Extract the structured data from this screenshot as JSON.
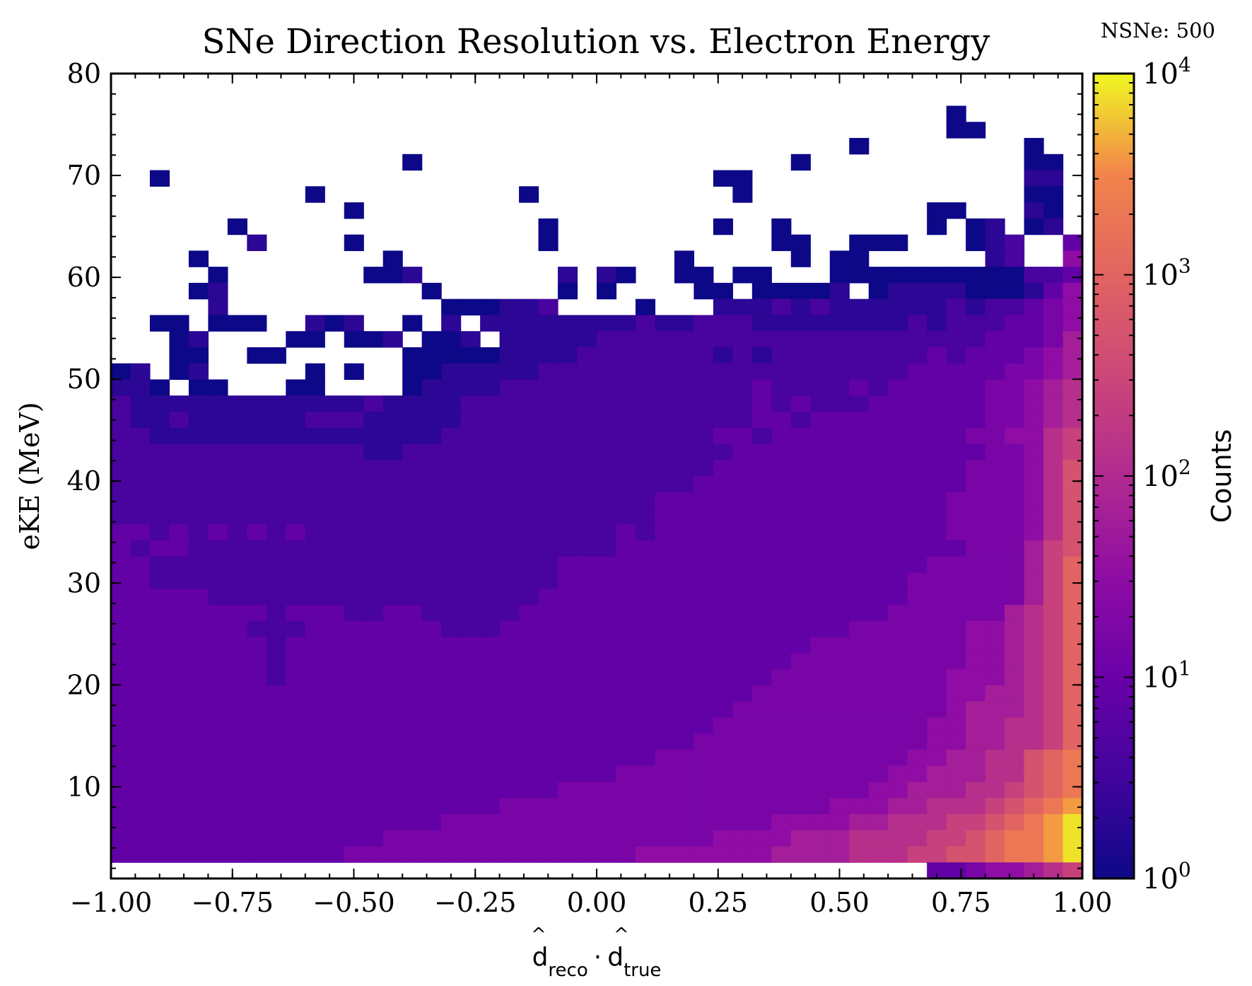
{
  "chart_data": {
    "type": "heatmap",
    "title": "SNe Direction Resolution vs. Electron Energy",
    "annotation": "NSNe: 500",
    "xlabel": {
      "base": "d",
      "sub": "reco",
      "dot": "·",
      "base2": "d",
      "sub2": "true"
    },
    "ylabel": "eKE (MeV)",
    "xlim": [
      -1.0,
      1.0
    ],
    "ylim": [
      1.0,
      80.0
    ],
    "x_ticks": [
      -1.0,
      -0.75,
      -0.5,
      -0.25,
      0.0,
      0.25,
      0.5,
      0.75,
      1.0
    ],
    "x_tick_labels": [
      "−1.00",
      "−0.75",
      "−0.50",
      "−0.25",
      "0.00",
      "0.25",
      "0.50",
      "0.75",
      "1.00"
    ],
    "y_ticks": [
      10,
      20,
      30,
      40,
      50,
      60,
      70,
      80
    ],
    "y_tick_labels": [
      "10",
      "20",
      "30",
      "40",
      "50",
      "60",
      "70",
      "80"
    ],
    "x_bins": 50,
    "y_bins": 50,
    "colormap": "plasma",
    "colorbar": {
      "label": "Counts",
      "scale": "log",
      "range": [
        1,
        10000
      ],
      "ticks": [
        1,
        10,
        100,
        1000,
        10000
      ],
      "tick_labels": [
        {
          "base": "10",
          "exp": "0"
        },
        {
          "base": "10",
          "exp": "1"
        },
        {
          "base": "10",
          "exp": "2"
        },
        {
          "base": "10",
          "exp": "3"
        },
        {
          "base": "10",
          "exp": "4"
        }
      ]
    },
    "log10_counts_rows_from_top": [
      "..................................................",
      "..................................................",
      "...........................................a......",
      "...........................................aa.....",
      "......................................a........a..",
      "...............a...................a...........aa.",
      "..a............................aa..............bb.",
      "..........a..........a..........a..............aa.",
      "............a.............................aa...ba.",
      "......a...............a........a..a.......a.ab.ab.",
      ".......b....a.........a...........aa..aaa...abc..d",
      "....a.........a..............a.....a.aa......bc..f",
      ".....a.......aab.......b.ba..aa.aa...aaaaaaaaaaccd",
      "....ab..........a......a.a....aa.aaaab.abbbbaaabdf",
      ".....b...........aaabbc....a...bbbcbcbbbbbbcbccdef",
      "..aa.aaa..bab..a.b.bbbbbbbbcbbcccbbbbbbbbcbcccddef",
      "...ab....aa.aab.aab.bbbbbccccccccccccccccccccdddeg",
      "...aa..aa......aaaaabbbbcccccccbcbccccccccdcdddefg",
      "ab.ab.....a.a..aabbbbbcccccccccccccccccccdddddeefg",
      "bba.aa...aa....abbbbcccccccccccccdccccdcdddddeefgh",
      "cbbbbbbbbbbbbcbbbbcccccccccccccccdcdcccddddddeefgh",
      "cbbcbbbbbbcccbbbbbcccccccccccccccddcdddddddddeefgh",
      "ccbbbbbbbbbbbbbbbccccccccccccccddcddddddddddeeffhi",
      "cccccccccccccbbcccccccccccccccccdddddddddddddeefhi",
      "cccccccccccccccccccccccccccccccdddddddddddddeeefhj",
      "ccccccccccccccccccccccccccccccddddddddddddddeeefhj",
      "ccccccccccccccccccccccccccccdddddddddddddddeeeefhj",
      "ccccccccccccccccccccccccccccdddddddddddddddeeeefhj",
      "ddcdcdcdcdccccccccccccccccdcdddddddddddddddeeeefhj",
      "dcddccccccccccccccccccccccddddddddddddddddddeeegij",
      "ddcccccccccccccccccccccdddddddddddddddddddeeeeegik",
      "ddcccccccccccccccccccccddddddddddddddddddeeeeeegik",
      "dddddcccccccccccccccccdddddddddddddddddddeeeeeegik",
      "ddddddddcdddccddcccccdddddddddddddddddddeeeeeeghik",
      "dddddddcccdddddddcccddddddddddddddddddeeeeeeffghik",
      "ddddddddcdddddddddddddddddddddddddddeeeeeeeeffghik",
      "ddddddddcddddddddddddddddddddddddddeeeeeeeeeffghik",
      "ddddddddcdddddddddddddddddddddddddeeeeeeeeefffghik",
      "dddddddddddddddddddddddddddddddddeeeeeeeeeeffgghik",
      "ddddddddddddddddddddddddddddddddeeeeeeeeeeefggghik",
      "dddddddddddddddddddddddddddddddeeeeeeeeeeeffgghhik",
      "ddddddddddddddddddddddddddddddeeeeeeeeeeeeffgghhik",
      "ddddddddddddddddddddddddddddeeeeeeeeeeeeeffgghhjkl",
      "ddddddddddddddddddddddddddeeeeeeeeeeeeeeffggghhjkl",
      "dddddddddddddddddddddddeeeeeeeeeeeeeeeeffggghhijkl",
      "ddddddddddddddddddddeeeeeeeeeeeeeeeeefffgghhhijklm",
      "dddddddddddddddddeeeeeeeeeeeeeeeeeffffgghhhiijklmn",
      "ddddddddddddddeeeeeeeeeeeeeeeeeffffggghhhhiijkllmn",
      "ddddddddddddeeeeeeeeeeeeeeefffffffgggghhhiijjkllmn",
      "..........................................ddeffghi"
    ],
    "log10_counts_key": {
      "a": 0.0,
      "b": 0.3,
      "c": 0.6,
      "d": 0.9,
      "e": 1.2,
      "f": 1.5,
      "g": 1.8,
      "h": 2.1,
      "i": 2.4,
      "j": 2.7,
      "k": 3.0,
      "l": 3.3,
      "m": 3.6,
      "n": 3.9,
      ".": "empty"
    }
  }
}
